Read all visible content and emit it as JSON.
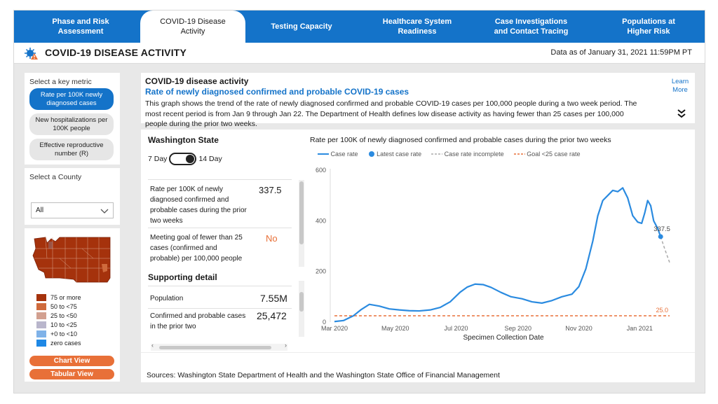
{
  "tabs": [
    {
      "label": "Phase and Risk Assessment",
      "active": false
    },
    {
      "label": "COVID-19 Disease Activity",
      "active": true
    },
    {
      "label": "Testing Capacity",
      "active": false
    },
    {
      "label": "Healthcare System Readiness",
      "active": false
    },
    {
      "label": "Case Investigations and Contact Tracing",
      "active": false
    },
    {
      "label": "Populations at Higher Risk",
      "active": false
    }
  ],
  "header": {
    "title": "COVID-19 DISEASE ACTIVITY",
    "data_as_of": "Data as of January 31, 2021 11:59PM PT"
  },
  "sidebar": {
    "metric_label": "Select a key metric",
    "metrics": [
      {
        "label": "Rate per 100K newly diagnosed cases",
        "selected": true
      },
      {
        "label": "New hospitalizations per 100K people",
        "selected": false
      },
      {
        "label": "Effective reproductive number (R)",
        "selected": false
      }
    ],
    "county_label": "Select a County",
    "county_value": "All",
    "map_legend": [
      {
        "label": "75 or more",
        "color": "#a5320c"
      },
      {
        "label": "50 to <75",
        "color": "#cf6a3c"
      },
      {
        "label": "25 to <50",
        "color": "#d2a090"
      },
      {
        "label": "10 to <25",
        "color": "#b9b6cc"
      },
      {
        "label": "+0 to <10",
        "color": "#7fb2e8"
      },
      {
        "label": "zero cases",
        "color": "#1e88e5"
      }
    ],
    "chart_view_label": "Chart View",
    "tabular_view_label": "Tabular View"
  },
  "info": {
    "heading": "COVID-19 disease activity",
    "subheading": "Rate of newly diagnosed confirmed and probable COVID-19 cases",
    "description": "This graph shows the trend of the rate of newly diagnosed confirmed and probable COVID-19 cases per 100,000 people during a two week period. The most recent period is from Jan 9 through Jan 22. The Department of Health defines low disease activity as having fewer than 25 cases per 100,000 people during the prior two weeks.",
    "learn_more": "Learn More",
    "expand_icon": "double-chevron-down-icon"
  },
  "stats": {
    "region": "Washington State",
    "toggle_left": "7 Day",
    "toggle_right": "14 Day",
    "rate_label": "Rate per 100K of newly diagnosed confirmed and probable cases during the prior two weeks",
    "rate_value": "337.5",
    "goal_label": "Meeting goal of fewer than 25 cases (confirmed and probable) per 100,000 people",
    "goal_value": "No",
    "supporting_title": "Supporting detail",
    "population_label": "Population",
    "population_value": "7.55M",
    "cases_label": "Confirmed and probable cases in the prior two",
    "cases_value": "25,472"
  },
  "chart_data": {
    "type": "line",
    "title": "Rate per 100K of newly diagnosed confirmed and probable cases during the prior two weeks",
    "xlabel": "Specimen Collection Date",
    "ylabel": "",
    "ylim": [
      0,
      600
    ],
    "yticks": [
      0,
      200,
      400,
      600
    ],
    "xticks": [
      "Mar 2020",
      "May 2020",
      "Jul 2020",
      "Sep 2020",
      "Nov 2020",
      "Jan 2021"
    ],
    "legend": [
      "Case rate",
      "Latest case rate",
      "Case rate incomplete",
      "Goal <25 case rate"
    ],
    "colors": {
      "case_rate": "#2b8be0",
      "incomplete": "#aaaaaa",
      "goal": "#e87038",
      "axis": "#999999"
    },
    "series": [
      {
        "name": "Case rate",
        "x": [
          "2020-03-01",
          "2020-03-10",
          "2020-03-20",
          "2020-03-28",
          "2020-04-05",
          "2020-04-15",
          "2020-04-25",
          "2020-05-05",
          "2020-05-15",
          "2020-05-25",
          "2020-06-05",
          "2020-06-15",
          "2020-06-25",
          "2020-07-05",
          "2020-07-12",
          "2020-07-20",
          "2020-07-28",
          "2020-08-05",
          "2020-08-15",
          "2020-08-25",
          "2020-09-05",
          "2020-09-15",
          "2020-09-25",
          "2020-10-05",
          "2020-10-15",
          "2020-10-25",
          "2020-11-01",
          "2020-11-08",
          "2020-11-15",
          "2020-11-20",
          "2020-11-25",
          "2020-11-30",
          "2020-12-05",
          "2020-12-10",
          "2020-12-15",
          "2020-12-20",
          "2020-12-25",
          "2020-12-30",
          "2021-01-03",
          "2021-01-06",
          "2021-01-09",
          "2021-01-12",
          "2021-01-15",
          "2021-01-19",
          "2021-01-22"
        ],
        "y": [
          2,
          6,
          25,
          50,
          70,
          63,
          52,
          48,
          45,
          44,
          48,
          58,
          80,
          118,
          138,
          150,
          148,
          137,
          117,
          100,
          92,
          80,
          75,
          85,
          100,
          110,
          140,
          210,
          320,
          420,
          480,
          500,
          520,
          515,
          530,
          490,
          420,
          395,
          390,
          430,
          480,
          460,
          400,
          370,
          337.5
        ]
      },
      {
        "name": "Latest case rate",
        "x": [
          "2021-01-22"
        ],
        "y": [
          337.5
        ],
        "label": "337.5"
      },
      {
        "name": "Case rate incomplete",
        "x": [
          "2021-01-22",
          "2021-01-26",
          "2021-01-31"
        ],
        "y": [
          337.5,
          290,
          235
        ]
      },
      {
        "name": "Goal <25 case rate",
        "x": [
          "2020-03-01",
          "2021-01-31"
        ],
        "y": [
          25,
          25
        ],
        "label": "25.0"
      }
    ]
  },
  "footer": {
    "sources": "Sources: Washington State Department of Health and the Washington State Office of Financial Management"
  }
}
